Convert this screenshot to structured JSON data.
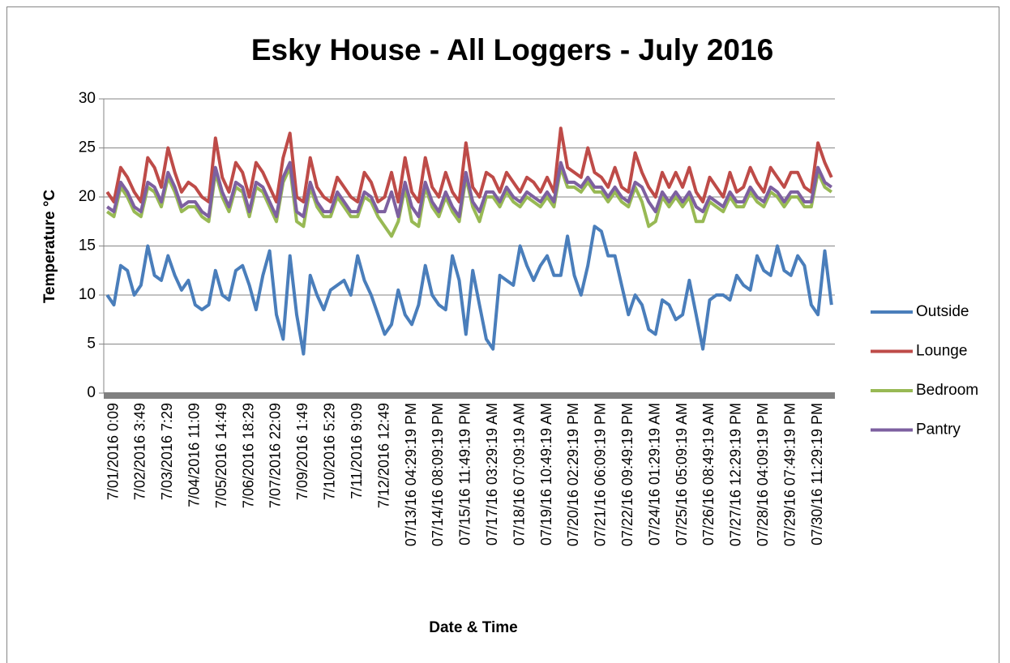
{
  "chart_data": {
    "type": "line",
    "title": "Esky House - All Loggers - July 2016",
    "x_label": "Date & Time",
    "y_label": "Temperature °C",
    "ylim": [
      0,
      30
    ],
    "yticks": [
      0,
      5,
      10,
      15,
      20,
      25,
      30
    ],
    "grid": true,
    "legend": "right",
    "categories": [
      null,
      "7/01/2016 0:09",
      null,
      null,
      null,
      "7/02/2016 3:49",
      null,
      null,
      null,
      "7/03/2016 7:29",
      null,
      null,
      null,
      "7/04/2016 11:09",
      null,
      null,
      null,
      "7/05/2016 14:49",
      null,
      null,
      null,
      "7/06/2016 18:29",
      null,
      null,
      null,
      "7/07/2016 22:09",
      null,
      null,
      null,
      "7/09/2016 1:49",
      null,
      null,
      null,
      "7/10/2016 5:29",
      null,
      null,
      null,
      "7/11/2016 9:09",
      null,
      null,
      null,
      "7/12/2016 12:49",
      null,
      null,
      null,
      "07/13/16 04:29:19 PM",
      null,
      null,
      null,
      "07/14/16 08:09:19 PM",
      null,
      null,
      null,
      "07/15/16 11:49:19 PM",
      null,
      null,
      null,
      "07/17/16 03:29:19 AM",
      null,
      null,
      null,
      "07/18/16 07:09:19 AM",
      null,
      null,
      null,
      "07/19/16 10:49:19 AM",
      null,
      null,
      null,
      "07/20/16 02:29:19 PM",
      null,
      null,
      null,
      "07/21/16 06:09:19 PM",
      null,
      null,
      null,
      "07/22/16 09:49:19 PM",
      null,
      null,
      null,
      "07/24/16 01:29:19 AM",
      null,
      null,
      null,
      "07/25/16 05:09:19 AM",
      null,
      null,
      null,
      "07/26/16 08:49:19 AM",
      null,
      null,
      null,
      "07/27/16 12:29:19 PM",
      null,
      null,
      null,
      "07/28/16 04:09:19 PM",
      null,
      null,
      null,
      "07/29/16 07:49:19 PM",
      null,
      null,
      null,
      "07/30/16 11:29:19 PM",
      null,
      null
    ],
    "series": [
      {
        "name": "Outside",
        "color": "#4a7ebb",
        "values": [
          10,
          9,
          13,
          12.5,
          10,
          11,
          15,
          12,
          11.5,
          14,
          12,
          10.5,
          11.5,
          9,
          8.5,
          9,
          12.5,
          10,
          9.5,
          12.5,
          13,
          11,
          8.5,
          12,
          14.5,
          8,
          5.5,
          14,
          8,
          4,
          12,
          10,
          8.5,
          10.5,
          11,
          11.5,
          10,
          14,
          11.5,
          10,
          8,
          6,
          7,
          10.5,
          8,
          7,
          9,
          13,
          10,
          9,
          8.5,
          14,
          11.5,
          6,
          12.5,
          9,
          5.5,
          4.5,
          12,
          11.5,
          11,
          15,
          13,
          11.5,
          13,
          14,
          12,
          12,
          16,
          12,
          10,
          13,
          17,
          16.5,
          14,
          14,
          11,
          8,
          10,
          9,
          6.5,
          6,
          9.5,
          9,
          7.5,
          8,
          11.5,
          8,
          4.5,
          9.5,
          10,
          10,
          9.5,
          12,
          11,
          10.5,
          14,
          12.5,
          12,
          15,
          12.5,
          12,
          14,
          13,
          9,
          8,
          14.5,
          9
        ]
      },
      {
        "name": "Lounge",
        "color": "#be4b48",
        "values": [
          20.5,
          19.5,
          23,
          22,
          20.5,
          19.5,
          24,
          23,
          21,
          25,
          22.5,
          20.5,
          21.5,
          21,
          20,
          19.5,
          26,
          22,
          20.5,
          23.5,
          22.5,
          20,
          23.5,
          22.5,
          21,
          19.5,
          24,
          26.5,
          20,
          19.5,
          24,
          21,
          20,
          19.5,
          22,
          21,
          20,
          19.5,
          22.5,
          21.5,
          19.5,
          20,
          22.5,
          19.5,
          24,
          20.5,
          19.5,
          24,
          21,
          20,
          22.5,
          20.5,
          19.5,
          25.5,
          21,
          20,
          22.5,
          22,
          20.5,
          22.5,
          21.5,
          20.5,
          22,
          21.5,
          20.5,
          22,
          20.5,
          27,
          23,
          22.5,
          22,
          25,
          22.5,
          22,
          21,
          23,
          21,
          20.5,
          24.5,
          22.5,
          21,
          20,
          22.5,
          21,
          22.5,
          21,
          23,
          20.5,
          19.5,
          22,
          21,
          20,
          22.5,
          20.5,
          21,
          23,
          21.5,
          20.5,
          23,
          22,
          21,
          22.5,
          22.5,
          21,
          20.5,
          25.5,
          23.5,
          22
        ]
      },
      {
        "name": "Bedroom",
        "color": "#98b954",
        "values": [
          18.5,
          18,
          21,
          20,
          18.5,
          18,
          21,
          20.5,
          19,
          22,
          20.5,
          18.5,
          19,
          19,
          18,
          17.5,
          22.5,
          20,
          18.5,
          21,
          20.5,
          18,
          21,
          20.5,
          19,
          17.5,
          21.5,
          23,
          17.5,
          17,
          21,
          19,
          18,
          18,
          20,
          19,
          18,
          18,
          20,
          19.5,
          18,
          17,
          16,
          17.5,
          21,
          17.5,
          17,
          21,
          19,
          18,
          20,
          18.5,
          17.5,
          22,
          19,
          17.5,
          20,
          20,
          19,
          20.5,
          19.5,
          19,
          20,
          19.5,
          19,
          20,
          19,
          23,
          21,
          21,
          20.5,
          21.5,
          20.5,
          20.5,
          19.5,
          20.5,
          19.5,
          19,
          21,
          19.5,
          17,
          17.5,
          20,
          19,
          20,
          19,
          20,
          17.5,
          17.5,
          19.5,
          19,
          18.5,
          20,
          19,
          19,
          20.5,
          19.5,
          19,
          20.5,
          20,
          19,
          20,
          20,
          19,
          19,
          22.5,
          21,
          20.5
        ]
      },
      {
        "name": "Pantry",
        "color": "#7d60a0",
        "values": [
          19,
          18.5,
          21.5,
          20.5,
          19,
          18.5,
          21.5,
          21,
          19.5,
          22.5,
          21,
          19,
          19.5,
          19.5,
          18.5,
          18,
          23,
          20.5,
          19,
          21.5,
          21,
          18.5,
          21.5,
          21,
          19.5,
          18,
          22,
          23.5,
          18.5,
          18,
          21.5,
          19.5,
          18.5,
          18.5,
          20.5,
          19.5,
          18.5,
          18.5,
          20.5,
          20,
          18.5,
          18.5,
          20.5,
          18,
          21.5,
          19,
          18,
          21.5,
          19.5,
          18.5,
          20.5,
          19,
          18,
          22.5,
          19.5,
          18.5,
          20.5,
          20.5,
          19.5,
          21,
          20,
          19.5,
          20.5,
          20,
          19.5,
          20.5,
          19.5,
          23.5,
          21.5,
          21.5,
          21,
          22,
          21,
          21,
          20,
          21,
          20,
          19.5,
          21.5,
          21,
          19.5,
          18.5,
          20.5,
          19.5,
          20.5,
          19.5,
          20.5,
          19,
          18.5,
          20,
          19.5,
          19,
          20.5,
          19.5,
          19.5,
          21,
          20,
          19.5,
          21,
          20.5,
          19.5,
          20.5,
          20.5,
          19.5,
          19.5,
          23,
          21.5,
          21
        ]
      }
    ]
  }
}
